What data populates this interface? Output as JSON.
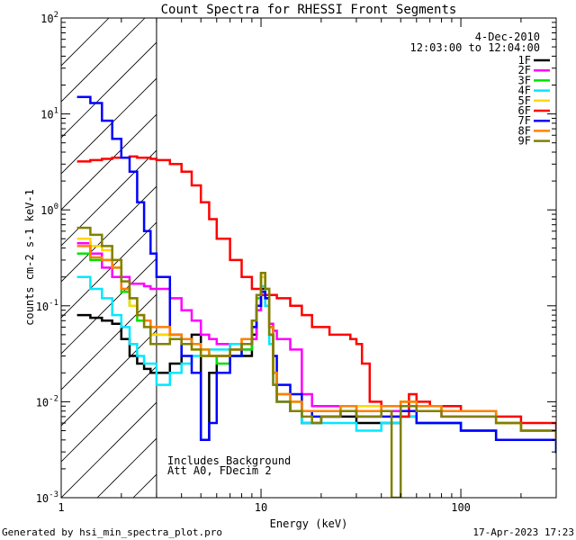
{
  "chart_data": {
    "type": "line",
    "title": "Count Spectra for RHESSI Front Segments",
    "xlabel": "Energy (keV)",
    "ylabel": "counts cm-2 s-1 keV-1",
    "x_scale": "log",
    "y_scale": "log",
    "xlim": [
      1,
      300
    ],
    "ylim": [
      0.001,
      100
    ],
    "x_tick_labels": [
      "1",
      "10",
      "100"
    ],
    "y_tick_labels": [
      "10^-3",
      "10^-2",
      "10^-1",
      "10^0",
      "10^1",
      "10^2"
    ],
    "date": "4-Dec-2010",
    "time_range": "12:03:00 to 12:04:00",
    "annotation_lines": [
      "Includes_Background",
      "Att A0, FDecim 2"
    ],
    "hatched_region": {
      "x_from": 1,
      "x_to": 3
    },
    "footer_left": "Generated by hsi_min_spectra_plot.pro",
    "footer_right": "17-Apr-2023 17:23",
    "legend_position": "top-right",
    "series": [
      {
        "name": "1F",
        "color": "#000000",
        "x": [
          1.2,
          1.4,
          1.6,
          1.8,
          2.0,
          2.2,
          2.4,
          2.6,
          2.8,
          3.0,
          3.5,
          4.0,
          4.5,
          5.0,
          5.5,
          6.0,
          7.0,
          8.0,
          9.0,
          9.5,
          10.0,
          10.5,
          11.0,
          11.5,
          12,
          14,
          16,
          18,
          20,
          25,
          30,
          40,
          50,
          60,
          80,
          100,
          150,
          200,
          300
        ],
        "y": [
          0.08,
          0.075,
          0.07,
          0.065,
          0.045,
          0.03,
          0.025,
          0.022,
          0.02,
          0.02,
          0.025,
          0.04,
          0.05,
          0.004,
          0.02,
          0.03,
          0.03,
          0.03,
          0.05,
          0.1,
          0.15,
          0.12,
          0.05,
          0.02,
          0.01,
          0.008,
          0.006,
          0.006,
          0.007,
          0.007,
          0.006,
          0.006,
          0.007,
          0.006,
          0.006,
          0.005,
          0.004,
          0.004,
          0.003
        ]
      },
      {
        "name": "2F",
        "color": "#ff00ff",
        "x": [
          1.2,
          1.4,
          1.6,
          1.8,
          2.0,
          2.2,
          2.4,
          2.6,
          2.8,
          3.0,
          3.5,
          4.0,
          4.5,
          5.0,
          5.5,
          6.0,
          7.0,
          8.0,
          9.0,
          9.5,
          10.0,
          10.5,
          11.0,
          11.5,
          12,
          14,
          16,
          18,
          20,
          25,
          30,
          40,
          50,
          60,
          80,
          100,
          150,
          200,
          300
        ],
        "y": [
          0.45,
          0.35,
          0.25,
          0.2,
          0.2,
          0.17,
          0.17,
          0.16,
          0.15,
          0.15,
          0.12,
          0.09,
          0.07,
          0.05,
          0.045,
          0.04,
          0.035,
          0.035,
          0.045,
          0.09,
          0.14,
          0.1,
          0.065,
          0.055,
          0.045,
          0.035,
          0.012,
          0.009,
          0.009,
          0.009,
          0.008,
          0.008,
          0.009,
          0.008,
          0.007,
          0.007,
          0.006,
          0.005,
          0.004
        ]
      },
      {
        "name": "3F",
        "color": "#00e000",
        "x": [
          1.2,
          1.4,
          1.6,
          1.8,
          2.0,
          2.2,
          2.4,
          2.6,
          2.8,
          3.0,
          3.5,
          4.0,
          4.5,
          5.0,
          5.5,
          6.0,
          7.0,
          8.0,
          9.0,
          9.5,
          10.0,
          10.5,
          11.0,
          11.5,
          12,
          14,
          16,
          18,
          20,
          25,
          30,
          40,
          50,
          60,
          80,
          100,
          150,
          200,
          300
        ],
        "y": [
          0.35,
          0.3,
          0.3,
          0.25,
          0.14,
          0.1,
          0.07,
          0.07,
          0.05,
          0.05,
          0.05,
          0.045,
          0.04,
          0.035,
          0.03,
          0.025,
          0.03,
          0.035,
          0.06,
          0.12,
          0.2,
          0.15,
          0.05,
          0.02,
          0.012,
          0.01,
          0.008,
          0.008,
          0.008,
          0.009,
          0.008,
          0.009,
          0.01,
          0.009,
          0.008,
          0.008,
          0.006,
          0.005,
          0.004
        ]
      },
      {
        "name": "4F",
        "color": "#00e8ff",
        "x": [
          1.2,
          1.4,
          1.6,
          1.8,
          2.0,
          2.2,
          2.4,
          2.6,
          2.8,
          3.0,
          3.5,
          4.0,
          4.5,
          5.0,
          5.5,
          6.0,
          7.0,
          8.0,
          9.0,
          9.5,
          10.0,
          10.5,
          11.0,
          11.5,
          12,
          14,
          16,
          18,
          20,
          25,
          30,
          40,
          50,
          60,
          80,
          100,
          150,
          200,
          300
        ],
        "y": [
          0.2,
          0.15,
          0.12,
          0.08,
          0.06,
          0.04,
          0.03,
          0.025,
          0.025,
          0.015,
          0.02,
          0.025,
          0.03,
          0.03,
          0.035,
          0.035,
          0.04,
          0.04,
          0.07,
          0.1,
          0.16,
          0.1,
          0.04,
          0.015,
          0.01,
          0.008,
          0.006,
          0.006,
          0.006,
          0.006,
          0.005,
          0.006,
          0.007,
          0.006,
          0.006,
          0.005,
          0.004,
          0.004,
          0.003
        ]
      },
      {
        "name": "5F",
        "color": "#ffd800",
        "x": [
          1.2,
          1.4,
          1.6,
          1.8,
          2.0,
          2.2,
          2.4,
          2.6,
          2.8,
          3.0,
          3.5,
          4.0,
          4.5,
          5.0,
          5.5,
          6.0,
          7.0,
          8.0,
          9.0,
          9.5,
          10.0,
          10.5,
          11.0,
          11.5,
          12,
          14,
          16,
          18,
          20,
          25,
          30,
          40,
          50,
          60,
          80,
          100,
          150,
          200,
          300
        ],
        "y": [
          0.5,
          0.42,
          0.38,
          0.3,
          0.15,
          0.1,
          0.08,
          0.06,
          0.05,
          0.05,
          0.045,
          0.04,
          0.035,
          0.03,
          0.03,
          0.03,
          0.035,
          0.045,
          0.07,
          0.13,
          0.2,
          0.15,
          0.06,
          0.02,
          0.012,
          0.01,
          0.008,
          0.008,
          0.008,
          0.009,
          0.009,
          0.009,
          0.01,
          0.009,
          0.008,
          0.008,
          0.006,
          0.005,
          0.004
        ]
      },
      {
        "name": "6F",
        "color": "#ff0000",
        "x": [
          1.2,
          1.4,
          1.6,
          1.8,
          2.0,
          2.2,
          2.4,
          2.6,
          2.8,
          3.0,
          3.5,
          4.0,
          4.5,
          5.0,
          5.5,
          6.0,
          7.0,
          8.0,
          9.0,
          10,
          11,
          12,
          14,
          16,
          18,
          20,
          22,
          25,
          28,
          30,
          32,
          35,
          40,
          45,
          50,
          55,
          60,
          70,
          80,
          100,
          150,
          200,
          300
        ],
        "y": [
          3.2,
          3.3,
          3.4,
          3.5,
          3.5,
          3.6,
          3.5,
          3.5,
          3.4,
          3.3,
          3.0,
          2.5,
          1.8,
          1.2,
          0.8,
          0.5,
          0.3,
          0.2,
          0.15,
          0.13,
          0.13,
          0.12,
          0.1,
          0.08,
          0.06,
          0.06,
          0.05,
          0.05,
          0.045,
          0.04,
          0.025,
          0.01,
          0.008,
          0.007,
          0.007,
          0.012,
          0.01,
          0.009,
          0.009,
          0.008,
          0.007,
          0.006,
          0.004
        ]
      },
      {
        "name": "7F",
        "color": "#0000ff",
        "x": [
          1.2,
          1.4,
          1.6,
          1.8,
          2.0,
          2.2,
          2.4,
          2.6,
          2.8,
          3.0,
          3.5,
          4.0,
          4.5,
          5.0,
          5.5,
          6.0,
          7.0,
          8.0,
          9.0,
          9.5,
          10.0,
          10.5,
          11.0,
          11.5,
          12,
          14,
          16,
          18,
          20,
          25,
          30,
          40,
          50,
          60,
          80,
          100,
          150,
          200,
          300
        ],
        "y": [
          15,
          13,
          8.5,
          5.5,
          3.5,
          2.5,
          1.2,
          0.6,
          0.35,
          0.2,
          0.05,
          0.03,
          0.02,
          0.004,
          0.006,
          0.02,
          0.03,
          0.04,
          0.06,
          0.1,
          0.14,
          0.12,
          0.06,
          0.03,
          0.015,
          0.012,
          0.008,
          0.007,
          0.007,
          0.008,
          0.007,
          0.007,
          0.008,
          0.006,
          0.006,
          0.005,
          0.004,
          0.004,
          0.003
        ]
      },
      {
        "name": "8F",
        "color": "#ff8000",
        "x": [
          1.2,
          1.4,
          1.6,
          1.8,
          2.0,
          2.2,
          2.4,
          2.6,
          2.8,
          3.0,
          3.5,
          4.0,
          4.5,
          5.0,
          5.5,
          6.0,
          7.0,
          8.0,
          9.0,
          9.5,
          10.0,
          10.5,
          11.0,
          11.5,
          12,
          14,
          16,
          18,
          20,
          25,
          30,
          40,
          50,
          60,
          80,
          100,
          150,
          200,
          300
        ],
        "y": [
          0.42,
          0.32,
          0.3,
          0.25,
          0.15,
          0.12,
          0.08,
          0.07,
          0.06,
          0.06,
          0.05,
          0.045,
          0.04,
          0.035,
          0.03,
          0.03,
          0.035,
          0.045,
          0.07,
          0.13,
          0.22,
          0.15,
          0.06,
          0.02,
          0.012,
          0.01,
          0.008,
          0.008,
          0.008,
          0.009,
          0.008,
          0.009,
          0.01,
          0.009,
          0.008,
          0.008,
          0.006,
          0.005,
          0.004
        ]
      },
      {
        "name": "9F",
        "color": "#808000",
        "x": [
          1.2,
          1.4,
          1.6,
          1.8,
          2.0,
          2.2,
          2.4,
          2.6,
          2.8,
          3.0,
          3.5,
          4.0,
          4.5,
          5.0,
          5.5,
          6.0,
          7.0,
          8.0,
          9.0,
          9.5,
          10.0,
          10.5,
          11.0,
          11.5,
          12,
          14,
          16,
          18,
          20,
          25,
          30,
          40,
          45,
          50,
          60,
          80,
          100,
          150,
          200,
          300
        ],
        "y": [
          0.65,
          0.55,
          0.42,
          0.3,
          0.18,
          0.12,
          0.08,
          0.06,
          0.04,
          0.04,
          0.045,
          0.04,
          0.035,
          0.03,
          0.03,
          0.03,
          0.035,
          0.04,
          0.07,
          0.13,
          0.22,
          0.15,
          0.05,
          0.015,
          0.01,
          0.008,
          0.007,
          0.006,
          0.007,
          0.008,
          0.007,
          0.008,
          0.001,
          0.009,
          0.008,
          0.007,
          0.007,
          0.006,
          0.005,
          0.004
        ]
      }
    ]
  }
}
